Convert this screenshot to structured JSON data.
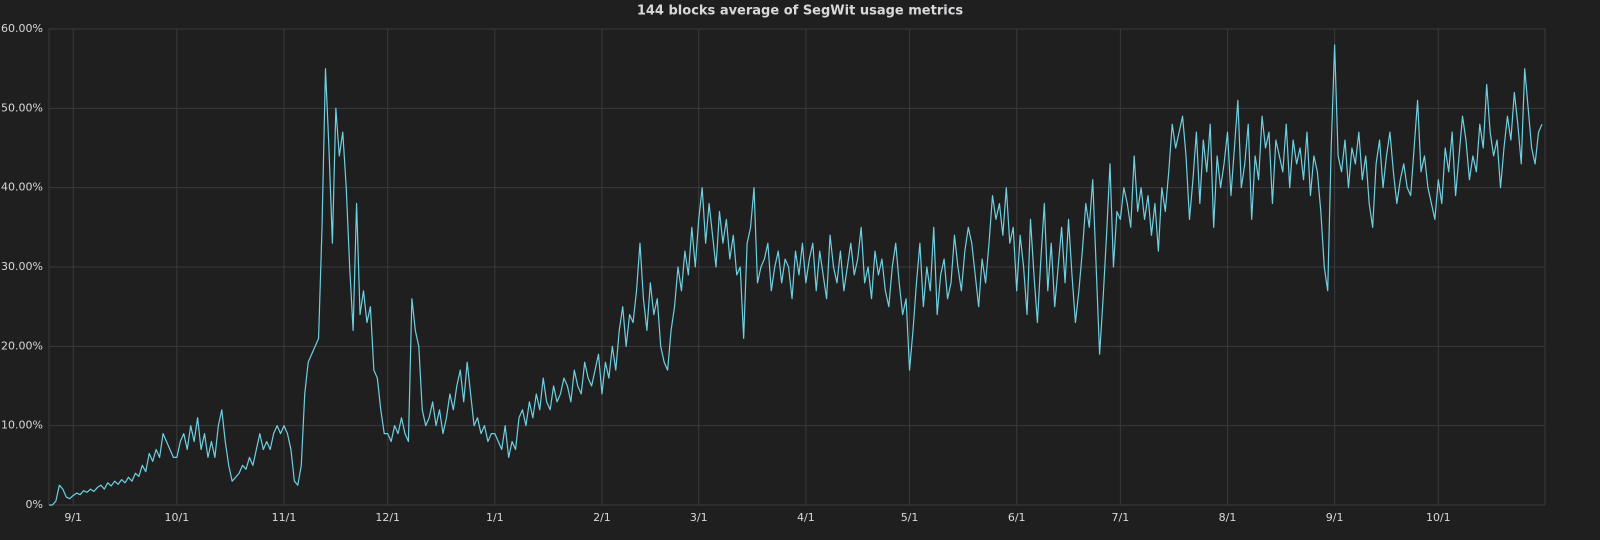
{
  "chart_data": {
    "type": "line",
    "title": "144 blocks average of SegWit usage metrics",
    "color": "#6ed0e0",
    "grid": true,
    "ylim": [
      0,
      60
    ],
    "yticks": [
      {
        "value": 0,
        "label": "0%"
      },
      {
        "value": 10,
        "label": "10.00%"
      },
      {
        "value": 20,
        "label": "20.00%"
      },
      {
        "value": 30,
        "label": "30.00%"
      },
      {
        "value": 40,
        "label": "40.00%"
      },
      {
        "value": 50,
        "label": "50.00%"
      },
      {
        "value": 60,
        "label": "60.00%"
      }
    ],
    "categories": [
      null,
      null,
      null,
      null,
      null,
      null,
      null,
      "9/1",
      null,
      null,
      null,
      null,
      null,
      null,
      null,
      null,
      null,
      null,
      null,
      null,
      null,
      null,
      null,
      null,
      null,
      null,
      null,
      null,
      null,
      null,
      null,
      null,
      null,
      null,
      null,
      null,
      null,
      "10/1",
      null,
      null,
      null,
      null,
      null,
      null,
      null,
      null,
      null,
      null,
      null,
      null,
      null,
      null,
      null,
      null,
      null,
      null,
      null,
      null,
      null,
      null,
      null,
      null,
      null,
      null,
      null,
      null,
      null,
      null,
      "11/1",
      null,
      null,
      null,
      null,
      null,
      null,
      null,
      null,
      null,
      null,
      null,
      null,
      null,
      null,
      null,
      null,
      null,
      null,
      null,
      null,
      null,
      null,
      null,
      null,
      null,
      null,
      null,
      null,
      null,
      "12/1",
      null,
      null,
      null,
      null,
      null,
      null,
      null,
      null,
      null,
      null,
      null,
      null,
      null,
      null,
      null,
      null,
      null,
      null,
      null,
      null,
      null,
      null,
      null,
      null,
      null,
      null,
      null,
      null,
      null,
      null,
      "1/1",
      null,
      null,
      null,
      null,
      null,
      null,
      null,
      null,
      null,
      null,
      null,
      null,
      null,
      null,
      null,
      null,
      null,
      null,
      null,
      null,
      null,
      null,
      null,
      null,
      null,
      null,
      null,
      null,
      null,
      null,
      "2/1",
      null,
      null,
      null,
      null,
      null,
      null,
      null,
      null,
      null,
      null,
      null,
      null,
      null,
      null,
      null,
      null,
      null,
      null,
      null,
      null,
      null,
      null,
      null,
      null,
      null,
      null,
      null,
      "3/1",
      null,
      null,
      null,
      null,
      null,
      null,
      null,
      null,
      null,
      null,
      null,
      null,
      null,
      null,
      null,
      null,
      null,
      null,
      null,
      null,
      null,
      null,
      null,
      null,
      null,
      null,
      null,
      null,
      null,
      null,
      "4/1",
      null,
      null,
      null,
      null,
      null,
      null,
      null,
      null,
      null,
      null,
      null,
      null,
      null,
      null,
      null,
      null,
      null,
      null,
      null,
      null,
      null,
      null,
      null,
      null,
      null,
      null,
      null,
      null,
      null,
      "5/1",
      null,
      null,
      null,
      null,
      null,
      null,
      null,
      null,
      null,
      null,
      null,
      null,
      null,
      null,
      null,
      null,
      null,
      null,
      null,
      null,
      null,
      null,
      null,
      null,
      null,
      null,
      null,
      null,
      null,
      null,
      "6/1",
      null,
      null,
      null,
      null,
      null,
      null,
      null,
      null,
      null,
      null,
      null,
      null,
      null,
      null,
      null,
      null,
      null,
      null,
      null,
      null,
      null,
      null,
      null,
      null,
      null,
      null,
      null,
      null,
      null,
      "7/1",
      null,
      null,
      null,
      null,
      null,
      null,
      null,
      null,
      null,
      null,
      null,
      null,
      null,
      null,
      null,
      null,
      null,
      null,
      null,
      null,
      null,
      null,
      null,
      null,
      null,
      null,
      null,
      null,
      null,
      null,
      "8/1",
      null,
      null,
      null,
      null,
      null,
      null,
      null,
      null,
      null,
      null,
      null,
      null,
      null,
      null,
      null,
      null,
      null,
      null,
      null,
      null,
      null,
      null,
      null,
      null,
      null,
      null,
      null,
      null,
      null,
      null,
      "9/1",
      null,
      null,
      null,
      null,
      null,
      null,
      null,
      null,
      null,
      null,
      null,
      null,
      null,
      null,
      null,
      null,
      null,
      null,
      null,
      null,
      null,
      null,
      null,
      null,
      null,
      null,
      null,
      null,
      null,
      "10/1",
      null,
      null,
      null,
      null,
      null,
      null,
      null,
      null,
      null,
      null,
      null,
      null,
      null,
      null,
      null,
      null,
      null,
      null,
      null,
      null,
      null,
      null,
      null,
      null,
      null,
      null,
      null,
      null,
      null,
      null
    ],
    "values": [
      0,
      0,
      0.5,
      2.5,
      2,
      1,
      0.8,
      1.2,
      1.5,
      1.3,
      1.8,
      1.6,
      2,
      1.7,
      2.2,
      2.5,
      2,
      2.8,
      2.4,
      3,
      2.6,
      3.2,
      2.8,
      3.5,
      3,
      4,
      3.6,
      5,
      4.2,
      6.5,
      5.5,
      7,
      6,
      9,
      8,
      7,
      6,
      6,
      8,
      9,
      7,
      10,
      8,
      11,
      7,
      9,
      6,
      8,
      6,
      10,
      12,
      8,
      5,
      3,
      3.5,
      4,
      5,
      4.5,
      6,
      5,
      7,
      9,
      7,
      8,
      7,
      9,
      10,
      9,
      10,
      9,
      7,
      3,
      2.5,
      5,
      14,
      18,
      19,
      20,
      21,
      35,
      55,
      45,
      33,
      50,
      44,
      47,
      40,
      30,
      22,
      38,
      24,
      27,
      23,
      25,
      17,
      16,
      12,
      9,
      9,
      8,
      10,
      9,
      11,
      9,
      8,
      26,
      22,
      20,
      12,
      10,
      11,
      13,
      10,
      12,
      9,
      11,
      14,
      12,
      15,
      17,
      13,
      18,
      14,
      10,
      11,
      9,
      10,
      8,
      9,
      9,
      8,
      7,
      10,
      6,
      8,
      7,
      11,
      12,
      10,
      13,
      11,
      14,
      12,
      16,
      13,
      12,
      15,
      13,
      14,
      16,
      15,
      13,
      17,
      15,
      14,
      18,
      16,
      15,
      17,
      19,
      14,
      18,
      16,
      20,
      17,
      22,
      25,
      20,
      24,
      23,
      27,
      33,
      26,
      22,
      28,
      24,
      26,
      20,
      18,
      17,
      22,
      25,
      30,
      27,
      32,
      29,
      35,
      30,
      36,
      40,
      33,
      38,
      34,
      30,
      37,
      33,
      36,
      31,
      34,
      29,
      30,
      21,
      33,
      35,
      40,
      28,
      30,
      31,
      33,
      27,
      30,
      32,
      28,
      31,
      30,
      26,
      32,
      29,
      33,
      28,
      31,
      33,
      27,
      32,
      29,
      26,
      34,
      30,
      28,
      32,
      27,
      30,
      33,
      29,
      31,
      35,
      28,
      30,
      26,
      32,
      29,
      31,
      27,
      25,
      30,
      33,
      28,
      24,
      26,
      17,
      22,
      28,
      33,
      25,
      30,
      27,
      35,
      24,
      29,
      31,
      26,
      28,
      34,
      30,
      27,
      32,
      35,
      33,
      29,
      25,
      31,
      28,
      33,
      39,
      36,
      38,
      34,
      40,
      33,
      35,
      27,
      34,
      30,
      24,
      36,
      29,
      23,
      31,
      38,
      27,
      33,
      25,
      30,
      35,
      28,
      36,
      29,
      23,
      27,
      32,
      38,
      35,
      41,
      30,
      19,
      26,
      34,
      43,
      30,
      37,
      36,
      40,
      38,
      35,
      44,
      37,
      40,
      36,
      39,
      34,
      38,
      32,
      40,
      37,
      42,
      48,
      45,
      47,
      49,
      44,
      36,
      41,
      47,
      38,
      46,
      42,
      48,
      35,
      44,
      40,
      43,
      47,
      39,
      45,
      51,
      40,
      43,
      48,
      36,
      44,
      41,
      49,
      45,
      47,
      38,
      46,
      44,
      42,
      48,
      40,
      46,
      43,
      45,
      41,
      47,
      39,
      44,
      42,
      37,
      30,
      27,
      45,
      58,
      44,
      42,
      46,
      40,
      45,
      43,
      47,
      41,
      44,
      38,
      35,
      43,
      46,
      40,
      44,
      47,
      42,
      38,
      41,
      43,
      40,
      39,
      45,
      51,
      42,
      44,
      40,
      38,
      36,
      41,
      38,
      45,
      42,
      47,
      39,
      44,
      49,
      46,
      41,
      44,
      42,
      48,
      45,
      53,
      47,
      44,
      46,
      40,
      45,
      49,
      46,
      52,
      48,
      43,
      55,
      50,
      45,
      43,
      47,
      48
    ]
  }
}
